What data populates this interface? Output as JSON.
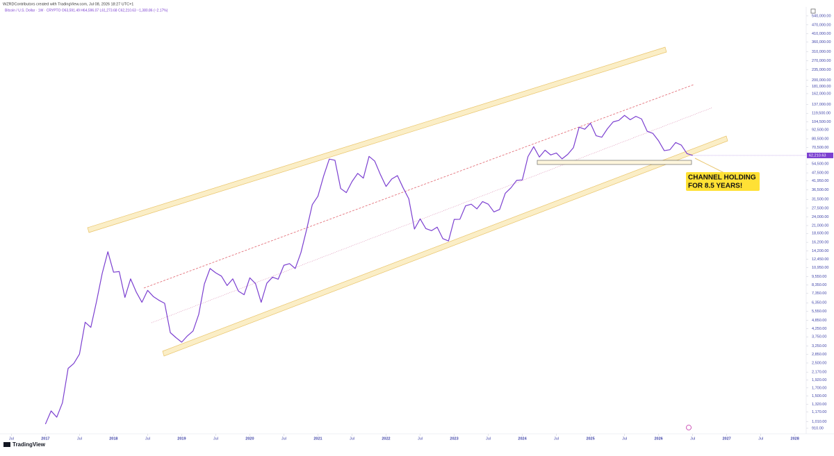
{
  "chart_data": {
    "type": "line",
    "title": "WZRDContributors created with TradingView.com, Jul 08, 2026 18:27 UTC+1",
    "subtitle": "Bitcoin / U.S. Dollar · 1W · CRYPTO  O63,591.49 H64,596.07 L61,273.68 C62,210.63 −1,380.86 (−2.17%)",
    "logo": "TradingView",
    "annotations": [
      "CHANNEL HOLDING",
      "FOR 8.5 YEARS!"
    ],
    "last_price_label": "62,210.63",
    "color": "#7b3fd0",
    "log_scale": true,
    "grid": false,
    "xlim": [
      "2016-05",
      "2028-03"
    ],
    "ylim": [
      835,
      588000
    ],
    "xticks": [
      {
        "value": "2016-07",
        "label": "Jul"
      },
      {
        "value": "2017-01",
        "label": "2017"
      },
      {
        "value": "2017-07",
        "label": "Jul"
      },
      {
        "value": "2018-01",
        "label": "2018"
      },
      {
        "value": "2018-07",
        "label": "Jul"
      },
      {
        "value": "2019-01",
        "label": "2019"
      },
      {
        "value": "2019-07",
        "label": "Jul"
      },
      {
        "value": "2020-01",
        "label": "2020"
      },
      {
        "value": "2020-07",
        "label": "Jul"
      },
      {
        "value": "2021-01",
        "label": "2021"
      },
      {
        "value": "2021-07",
        "label": "Jul"
      },
      {
        "value": "2022-01",
        "label": "2022"
      },
      {
        "value": "2022-07",
        "label": "Jul"
      },
      {
        "value": "2023-01",
        "label": "2023"
      },
      {
        "value": "2023-07",
        "label": "Jul"
      },
      {
        "value": "2024-01",
        "label": "2024"
      },
      {
        "value": "2024-07",
        "label": "Jul"
      },
      {
        "value": "2025-01",
        "label": "2025"
      },
      {
        "value": "2025-07",
        "label": "Jul"
      },
      {
        "value": "2026-01",
        "label": "2026"
      },
      {
        "value": "2026-07",
        "label": "Jul"
      },
      {
        "value": "2027-01",
        "label": "2027"
      },
      {
        "value": "2027-07",
        "label": "Jul"
      },
      {
        "value": "2028-01",
        "label": "2028"
      }
    ],
    "yticks": [
      {
        "value": 540000,
        "label": "540,000.00"
      },
      {
        "value": 470000,
        "label": "470,000.00"
      },
      {
        "value": 410000,
        "label": "410,000.00"
      },
      {
        "value": 360000,
        "label": "360,000.00"
      },
      {
        "value": 310000,
        "label": "310,000.00"
      },
      {
        "value": 270000,
        "label": "270,000.00"
      },
      {
        "value": 235000,
        "label": "235,000.00"
      },
      {
        "value": 200000,
        "label": "200,000.00"
      },
      {
        "value": 181000,
        "label": "181,000.00"
      },
      {
        "value": 162000,
        "label": "162,000.00"
      },
      {
        "value": 137000,
        "label": "137,000.00"
      },
      {
        "value": 119500,
        "label": "119,500.00"
      },
      {
        "value": 104500,
        "label": "104,500.00"
      },
      {
        "value": 92500,
        "label": "92,500.00"
      },
      {
        "value": 80500,
        "label": "80,500.00"
      },
      {
        "value": 70500,
        "label": "70,500.00"
      },
      {
        "value": 54500,
        "label": "54,500.00"
      },
      {
        "value": 47500,
        "label": "47,500.00"
      },
      {
        "value": 41950,
        "label": "41,950.00"
      },
      {
        "value": 36500,
        "label": "36,500.00"
      },
      {
        "value": 31500,
        "label": "31,500.00"
      },
      {
        "value": 27500,
        "label": "27,500.00"
      },
      {
        "value": 24000,
        "label": "24,000.00"
      },
      {
        "value": 21000,
        "label": "21,000.00"
      },
      {
        "value": 18600,
        "label": "18,600.00"
      },
      {
        "value": 16200,
        "label": "16,200.00"
      },
      {
        "value": 14200,
        "label": "14,200.00"
      },
      {
        "value": 12450,
        "label": "12,450.00"
      },
      {
        "value": 10950,
        "label": "10,950.00"
      },
      {
        "value": 9550,
        "label": "9,550.00"
      },
      {
        "value": 8350,
        "label": "8,350.00"
      },
      {
        "value": 7350,
        "label": "7,350.00"
      },
      {
        "value": 6350,
        "label": "6,350.00"
      },
      {
        "value": 5550,
        "label": "5,550.00"
      },
      {
        "value": 4850,
        "label": "4,850.00"
      },
      {
        "value": 4250,
        "label": "4,250.00"
      },
      {
        "value": 3750,
        "label": "3,750.00"
      },
      {
        "value": 3250,
        "label": "3,250.00"
      },
      {
        "value": 2850,
        "label": "2,850.00"
      },
      {
        "value": 2500,
        "label": "2,500.00"
      },
      {
        "value": 2170,
        "label": "2,170.00"
      },
      {
        "value": 1920,
        "label": "1,920.00"
      },
      {
        "value": 1700,
        "label": "1,700.00"
      },
      {
        "value": 1500,
        "label": "1,500.00"
      },
      {
        "value": 1320,
        "label": "1,320.00"
      },
      {
        "value": 1170,
        "label": "1,170.00"
      },
      {
        "value": 1010,
        "label": "1,010.00"
      },
      {
        "value": 910,
        "label": "910.00"
      }
    ],
    "x": [
      "2017-01",
      "2017-02",
      "2017-03",
      "2017-04",
      "2017-05",
      "2017-06",
      "2017-07",
      "2017-08",
      "2017-09",
      "2017-10",
      "2017-11",
      "2017-12",
      "2018-01",
      "2018-02",
      "2018-03",
      "2018-04",
      "2018-05",
      "2018-06",
      "2018-07",
      "2018-08",
      "2018-09",
      "2018-10",
      "2018-11",
      "2018-12",
      "2019-01",
      "2019-02",
      "2019-03",
      "2019-04",
      "2019-05",
      "2019-06",
      "2019-07",
      "2019-08",
      "2019-09",
      "2019-10",
      "2019-11",
      "2019-12",
      "2020-01",
      "2020-02",
      "2020-03",
      "2020-04",
      "2020-05",
      "2020-06",
      "2020-07",
      "2020-08",
      "2020-09",
      "2020-10",
      "2020-11",
      "2020-12",
      "2021-01",
      "2021-02",
      "2021-03",
      "2021-04",
      "2021-05",
      "2021-06",
      "2021-07",
      "2021-08",
      "2021-09",
      "2021-10",
      "2021-11",
      "2021-12",
      "2022-01",
      "2022-02",
      "2022-03",
      "2022-04",
      "2022-05",
      "2022-06",
      "2022-07",
      "2022-08",
      "2022-09",
      "2022-10",
      "2022-11",
      "2022-12",
      "2023-01",
      "2023-02",
      "2023-03",
      "2023-04",
      "2023-05",
      "2023-06",
      "2023-07",
      "2023-08",
      "2023-09",
      "2023-10",
      "2023-11",
      "2023-12",
      "2024-01",
      "2024-02",
      "2024-03",
      "2024-04",
      "2024-05",
      "2024-06",
      "2024-07",
      "2024-08",
      "2024-09",
      "2024-10",
      "2024-11",
      "2024-12",
      "2025-01",
      "2025-02",
      "2025-03",
      "2025-04",
      "2025-05",
      "2025-06",
      "2025-07",
      "2025-08",
      "2025-09",
      "2025-10",
      "2025-11",
      "2025-12",
      "2026-01",
      "2026-02",
      "2026-03",
      "2026-04",
      "2026-05",
      "2026-06",
      "2026-07"
    ],
    "values": [
      970,
      1190,
      1080,
      1350,
      2300,
      2480,
      2870,
      4700,
      4340,
      6470,
      10000,
      14000,
      10200,
      10300,
      6900,
      9200,
      7500,
      6400,
      7700,
      7000,
      6600,
      6300,
      4000,
      3700,
      3450,
      3800,
      4100,
      5300,
      8500,
      10800,
      10100,
      9600,
      8300,
      9200,
      7600,
      7200,
      9350,
      8550,
      6400,
      8600,
      9450,
      9150,
      11350,
      11650,
      10800,
      13800,
      19700,
      29000,
      33100,
      45200,
      58800,
      57700,
      37300,
      35000,
      41500,
      47100,
      43800,
      61300,
      57000,
      46300,
      38500,
      43200,
      45500,
      37700,
      31800,
      19900,
      23300,
      20050,
      19400,
      20500,
      17150,
      16550,
      23100,
      23150,
      28500,
      29250,
      27200,
      30450,
      29250,
      25950,
      26950,
      34650,
      37700,
      42300,
      42600,
      61200,
      71300,
      60700,
      67500,
      62700,
      64600,
      59000,
      63300,
      70200,
      96400,
      93400,
      102400,
      84400,
      82500,
      94200,
      104600,
      107100,
      115700,
      108200,
      114000,
      109500,
      90400,
      87500,
      78000,
      67000,
      68000,
      76000,
      73000,
      64000,
      62210.63
    ]
  }
}
